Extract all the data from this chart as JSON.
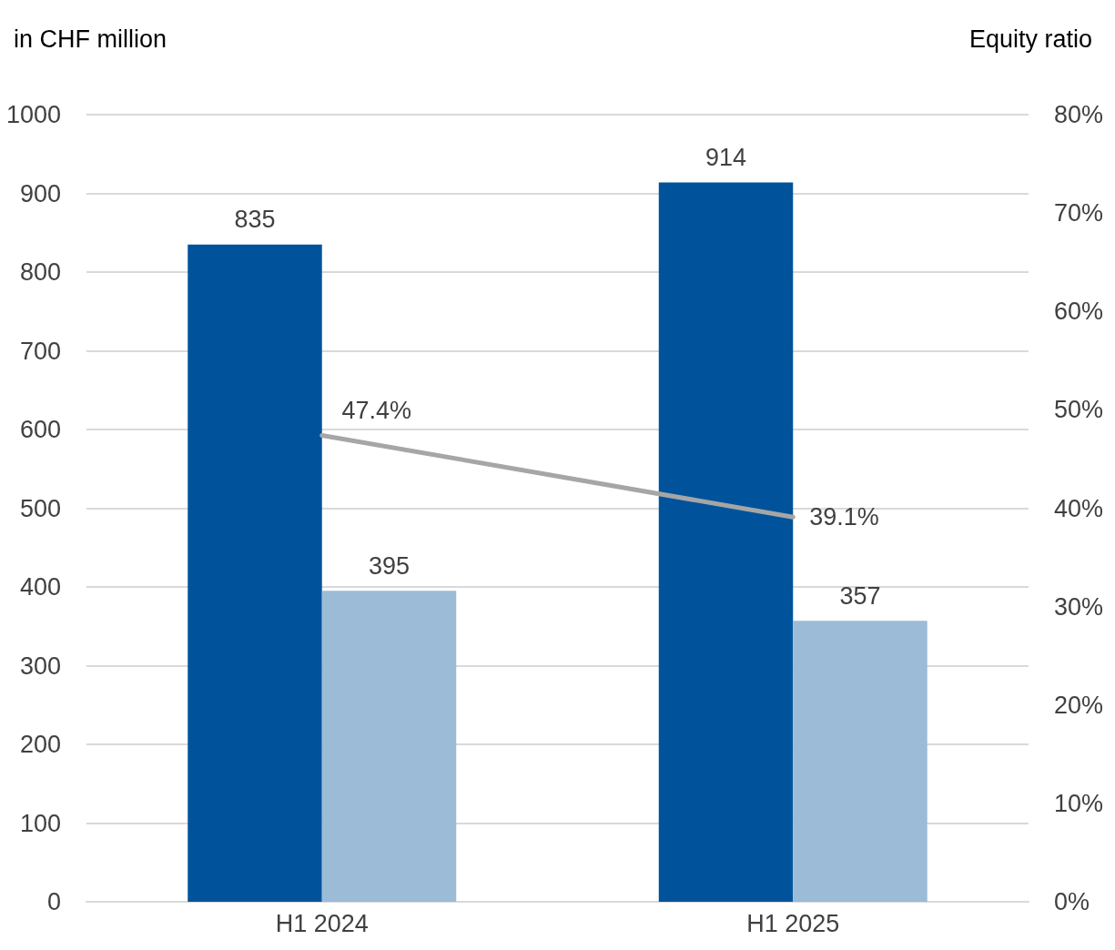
{
  "chart_data": {
    "type": "bar",
    "ylabel": "in CHF million",
    "y2label": "Equity ratio",
    "categories": [
      "H1 2024",
      "H1 2025"
    ],
    "series": [
      {
        "color": "#00539b",
        "values": [
          835,
          914
        ],
        "value_labels": [
          "835",
          "914"
        ]
      },
      {
        "color": "#9bbbd6",
        "values": [
          395,
          357
        ],
        "value_labels": [
          "395",
          "357"
        ]
      },
      {
        "type": "line",
        "axis": "y2",
        "color": "#a6a6a6",
        "values": [
          47.4,
          39.1
        ],
        "value_labels": [
          "47.4%",
          "39.1%"
        ],
        "marker": "none",
        "line_style": "solid"
      }
    ],
    "ylim": [
      0,
      1000
    ],
    "yticks": [
      0,
      100,
      200,
      300,
      400,
      500,
      600,
      700,
      800,
      900,
      1000
    ],
    "y2lim": [
      0,
      80
    ],
    "y2ticks": [
      {
        "value": 0,
        "label": "0%"
      },
      {
        "value": 10,
        "label": "10%"
      },
      {
        "value": 20,
        "label": "20%"
      },
      {
        "value": 30,
        "label": "30%"
      },
      {
        "value": 40,
        "label": "40%"
      },
      {
        "value": 50,
        "label": "50%"
      },
      {
        "value": 60,
        "label": "60%"
      },
      {
        "value": 70,
        "label": "70%"
      },
      {
        "value": 80,
        "label": "80%"
      }
    ],
    "grid": "y"
  }
}
